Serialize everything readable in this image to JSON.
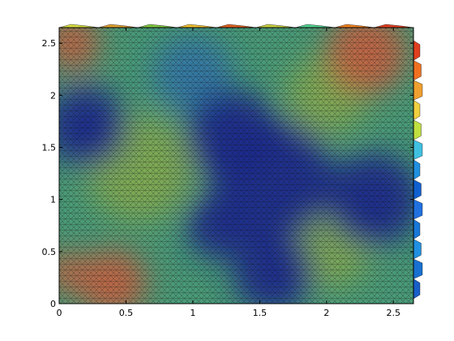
{
  "chart_data": {
    "type": "heatmap",
    "title": "",
    "xlabel": "",
    "ylabel": "",
    "xlim": [
      0,
      2.65
    ],
    "ylim": [
      0,
      2.65
    ],
    "grid": false,
    "colormap": "jet",
    "x_ticks": [
      0,
      0.5,
      1,
      1.5,
      2,
      2.5
    ],
    "y_ticks": [
      0,
      0.5,
      1,
      1.5,
      2,
      2.5
    ],
    "x_tick_labels": [
      "0",
      "0.5",
      "1",
      "1.5",
      "2",
      "2.5"
    ],
    "y_tick_labels": [
      "0",
      "0.5",
      "1",
      "1.5",
      "2",
      "2.5"
    ],
    "colors": {
      "low": "#1a2a8c",
      "mid_low": "#2f6fb0",
      "mid": "#4a9a78",
      "mid_high": "#8fae4a",
      "high": "#c86040",
      "peak": "#b83a28",
      "mesh_edges": "#111111"
    },
    "low_regions": [
      {
        "x": 1.3,
        "y": 1.6,
        "r": 0.35
      },
      {
        "x": 1.6,
        "y": 1.2,
        "r": 0.45
      },
      {
        "x": 2.35,
        "y": 1.0,
        "r": 0.35
      },
      {
        "x": 1.2,
        "y": 0.75,
        "r": 0.25
      },
      {
        "x": 1.6,
        "y": 0.3,
        "r": 0.3
      },
      {
        "x": 0.2,
        "y": 1.7,
        "r": 0.3
      }
    ],
    "high_regions": [
      {
        "x": 0.4,
        "y": 0.2,
        "r": 0.25
      },
      {
        "x": 2.3,
        "y": 2.4,
        "r": 0.3
      },
      {
        "x": 0.1,
        "y": 2.5,
        "r": 0.2
      },
      {
        "x": 0.05,
        "y": 0.3,
        "r": 0.15
      }
    ],
    "edge_color_bands": {
      "top": [
        "#d8e040",
        "#e0a030",
        "#80c840",
        "#f0c030",
        "#e06020",
        "#c8d040",
        "#50d090",
        "#f08020",
        "#e04020"
      ],
      "right": [
        "#e04020",
        "#f07020",
        "#f0a030",
        "#f0d040",
        "#c0e040",
        "#40c0e0",
        "#2090e0",
        "#1060d0",
        "#2070e0",
        "#1878d8",
        "#2090e0",
        "#1870d0",
        "#1860c8"
      ]
    }
  }
}
